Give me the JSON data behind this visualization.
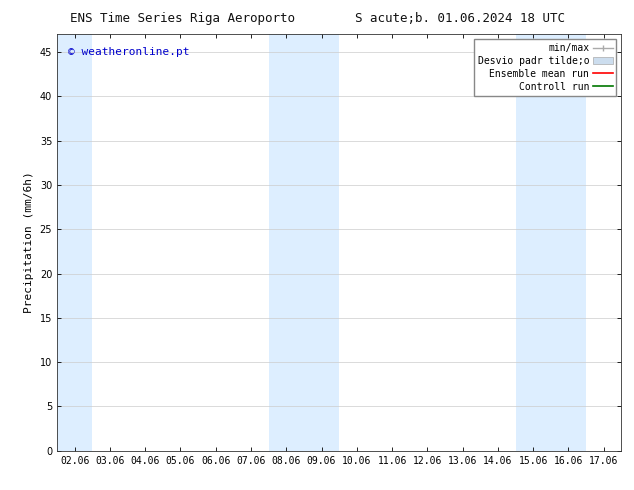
{
  "title_left": "ENS Time Series Riga Aeroporto",
  "title_right": "S acute;b. 01.06.2024 18 UTC",
  "ylabel": "Precipitation (mm/6h)",
  "ylim": [
    0,
    47
  ],
  "yticks": [
    0,
    5,
    10,
    15,
    20,
    25,
    30,
    35,
    40,
    45
  ],
  "xtick_labels": [
    "02.06",
    "03.06",
    "04.06",
    "05.06",
    "06.06",
    "07.06",
    "08.06",
    "09.06",
    "10.06",
    "11.06",
    "12.06",
    "13.06",
    "14.06",
    "15.06",
    "16.06",
    "17.06"
  ],
  "xtick_positions": [
    0,
    1,
    2,
    3,
    4,
    5,
    6,
    7,
    8,
    9,
    10,
    11,
    12,
    13,
    14,
    15
  ],
  "xlim": [
    -0.5,
    15.5
  ],
  "shaded_bands": [
    {
      "x_start": -0.5,
      "x_end": 0.5,
      "color": "#ddeeff"
    },
    {
      "x_start": 5.5,
      "x_end": 7.5,
      "color": "#ddeeff"
    },
    {
      "x_start": 12.5,
      "x_end": 14.5,
      "color": "#ddeeff"
    }
  ],
  "background_color": "#ffffff",
  "watermark_text": "© weatheronline.pt",
  "watermark_color": "#0000cc",
  "title_fontsize": 9,
  "tick_fontsize": 7,
  "ylabel_fontsize": 8,
  "watermark_fontsize": 8,
  "legend_fontsize": 7,
  "minmax_color": "#aaaaaa",
  "desvio_color": "#ccddee",
  "ensemble_color": "#ff0000",
  "control_color": "#007700"
}
